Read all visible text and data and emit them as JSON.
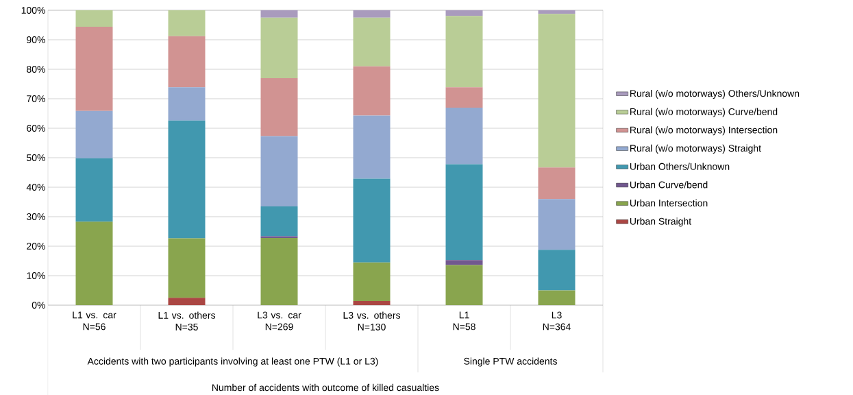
{
  "chart_data": {
    "type": "bar",
    "stacked": true,
    "categories": [
      "L1 vs. car\nN=56",
      "L1 vs. others\nN=35",
      "L3 vs. car\nN=269",
      "L3 vs. others\nN=130",
      "L1\nN=58",
      "L3\nN=364"
    ],
    "series": [
      {
        "name": "Urban Straight",
        "color": "#aa4643",
        "values": [
          0,
          2.5,
          0,
          1.4,
          0,
          0
        ]
      },
      {
        "name": "Urban Intersection",
        "color": "#89a54e",
        "values": [
          28.3,
          20.2,
          22.8,
          13.1,
          13.6,
          5.0
        ]
      },
      {
        "name": "Urban Curve/bend",
        "color": "#71588f",
        "values": [
          0,
          0,
          0.6,
          0,
          1.7,
          0
        ]
      },
      {
        "name": "Urban Others/Unknown",
        "color": "#4198af",
        "values": [
          21.5,
          39.9,
          10.1,
          28.4,
          32.5,
          13.8
        ]
      },
      {
        "name": "Rural (w/o motorways) Straight",
        "color": "#93a9d0",
        "values": [
          16.1,
          11.3,
          23.8,
          21.4,
          19.2,
          17.2
        ]
      },
      {
        "name": "Rural (w/o motorways) Intersection",
        "color": "#d19392",
        "values": [
          28.5,
          17.3,
          19.7,
          16.7,
          6.9,
          10.7
        ]
      },
      {
        "name": "Rural (w/o motorways) Curve/bend",
        "color": "#b9cd96",
        "values": [
          5.6,
          8.8,
          20.5,
          16.5,
          24.2,
          52.1
        ]
      },
      {
        "name": "Rural (w/o motorways) Others/Unknown",
        "color": "#a99bbd",
        "values": [
          0,
          0,
          2.5,
          2.5,
          1.9,
          1.2
        ]
      }
    ],
    "ylim": [
      0,
      100
    ],
    "yticks": [
      {
        "value": 0,
        "label": "0%"
      },
      {
        "value": 10,
        "label": "10%"
      },
      {
        "value": 20,
        "label": "20%"
      },
      {
        "value": 30,
        "label": "30%"
      },
      {
        "value": 40,
        "label": "40%"
      },
      {
        "value": 50,
        "label": "50%"
      },
      {
        "value": 60,
        "label": "60%"
      },
      {
        "value": 70,
        "label": "70%"
      },
      {
        "value": 80,
        "label": "80%"
      },
      {
        "value": 90,
        "label": "90%"
      },
      {
        "value": 100,
        "label": "100%"
      }
    ],
    "grid": "y",
    "legend": "right",
    "annotations": [
      "Accidents with two participants involving at least one PTW (L1 or L3)",
      "Single PTW accidents",
      "Number of accidents with outcome of killed casualties"
    ]
  }
}
